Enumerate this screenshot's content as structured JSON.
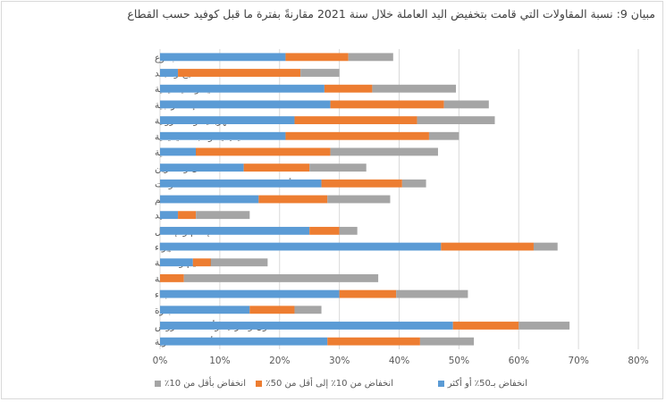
{
  "chart_data": {
    "type": "bar",
    "orientation": "horizontal",
    "stacked": true,
    "title": "مبيان 9: نسبة المقاولات التي قامت بتخفيض اليد العاملة خلال سنة 2021 مقارنةً بفترة ما قبل كوفيد حسب القطاع",
    "categories": [
      "المجموع",
      "صناعة النسيج والجلد",
      "الصناعات المعدنية والميكانيكية",
      "الصناعات الإستخراجية",
      "الصناعات الكهربائية والالكترونية",
      "الصناعات الكيميائية وشبه الكيميائية",
      "الصناعات الغذائية",
      "النقل والتخزين",
      "أنشطة الخدمات المقدمة للمقاولات",
      "المطاعم",
      "الصيد",
      "الإعلام والإتصال",
      "الإيواء",
      "التعليم والصحة",
      "الطاقة",
      "البناء",
      "التجارة",
      "الفنون والترفيه وأنشطة العروض",
      "الأنشطة العقارية"
    ],
    "series": [
      {
        "name": "انخفاض بـ50٪ أو أكثر",
        "color": "#5b9bd5",
        "values": [
          21,
          3,
          27.5,
          28.5,
          22.5,
          21,
          6,
          14,
          27,
          16.5,
          3,
          25,
          47,
          5.5,
          0,
          30,
          15,
          49,
          28
        ]
      },
      {
        "name": "انخفاض من 10٪ إلى أقل من 50٪",
        "color": "#ed7d31",
        "values": [
          10.5,
          20.5,
          8,
          19,
          20.5,
          24,
          22.5,
          11,
          13.5,
          11.5,
          3,
          5,
          15.5,
          3,
          4,
          9.5,
          7.5,
          11,
          15.5
        ]
      },
      {
        "name": "انخفاض بأقل من 10٪",
        "color": "#a5a5a5",
        "values": [
          7.5,
          6.5,
          14,
          7.5,
          13,
          5,
          18,
          9.5,
          4,
          10.5,
          9,
          3,
          4,
          9.5,
          32.5,
          12,
          4.5,
          8.5,
          9
        ]
      }
    ],
    "x_ticks": [
      "0%",
      "10%",
      "20%",
      "30%",
      "40%",
      "50%",
      "60%",
      "70%",
      "80%"
    ],
    "xlim": [
      0,
      80
    ],
    "grid": true,
    "legend_position": "bottom"
  }
}
